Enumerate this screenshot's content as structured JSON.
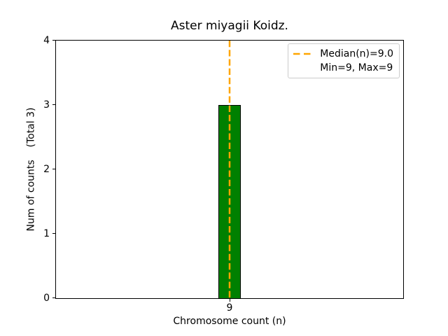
{
  "chart_data": {
    "type": "bar",
    "title": "Aster miyagii Koidz.",
    "xlabel": "Chromosome count (n)",
    "ylabel": "Num of counts    (Total 3)",
    "categories": [
      9
    ],
    "values": [
      3
    ],
    "bar_color": "#008000",
    "bar_edge_color": "#000000",
    "bar_width_units": 0.8,
    "xlim": [
      2.8,
      15.2
    ],
    "ylim": [
      0,
      4
    ],
    "xticks": [
      9
    ],
    "yticks": [
      0,
      1,
      2,
      3,
      4
    ],
    "grid": false,
    "median_line": {
      "x": 9.0,
      "color": "#FFA500",
      "style": "dashed"
    },
    "legend": {
      "position": "upper right",
      "entries": [
        {
          "label": "Median(n)=9.0",
          "handle": "dashed-line",
          "color": "#FFA500"
        },
        {
          "label": "Min=9, Max=9",
          "handle": "none",
          "color": ""
        }
      ]
    }
  }
}
